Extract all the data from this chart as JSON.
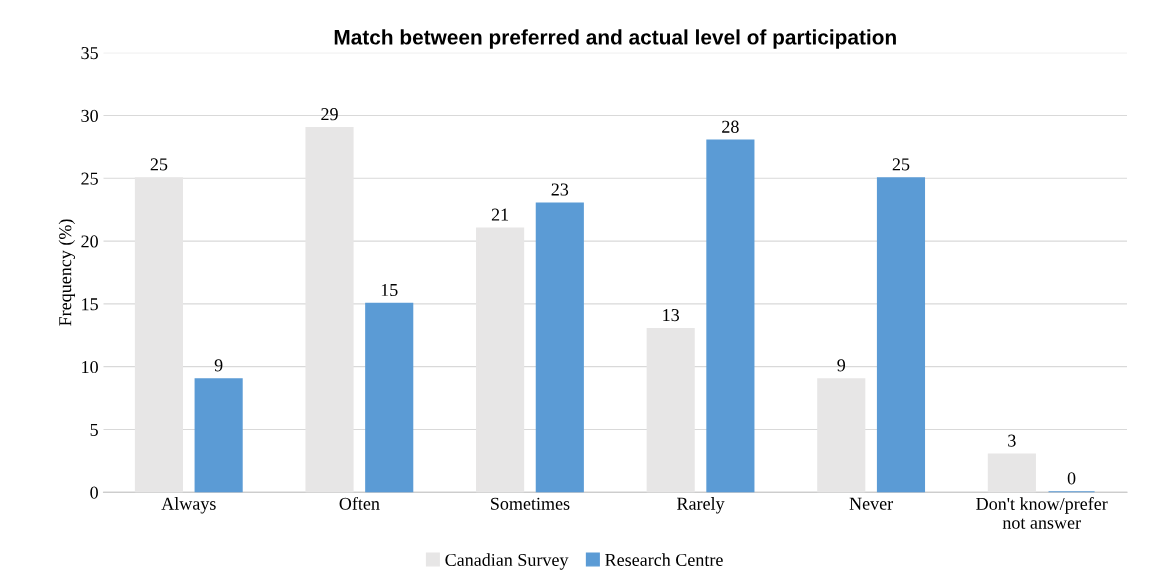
{
  "chart_data": {
    "type": "bar",
    "title": "Match between preferred and actual level of participation",
    "ylabel": "Frequency (%)",
    "categories": [
      "Always",
      "Often",
      "Sometimes",
      "Rarely",
      "Never",
      "Don't know/prefer\nnot answer"
    ],
    "series": [
      {
        "name": "Canadian Survey",
        "color": "#e7e6e6",
        "values": [
          25,
          29,
          21,
          13,
          9,
          3
        ]
      },
      {
        "name": "Research Centre",
        "color": "#5b9bd5",
        "values": [
          9,
          15,
          23,
          28,
          25,
          0
        ]
      }
    ],
    "ylim": [
      0,
      35
    ],
    "yticks": [
      0,
      5,
      10,
      15,
      20,
      25,
      30,
      35
    ],
    "grid": "y",
    "legend": "bottom",
    "data_labels": true
  }
}
